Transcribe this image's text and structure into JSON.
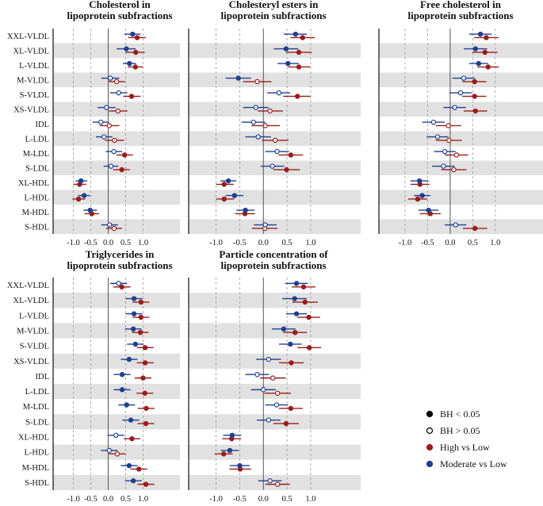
{
  "chart_data": [
    {
      "type": "forest",
      "title": [
        "Cholesterol in",
        "lipoprotein subfractions"
      ],
      "categories": [
        "XXL-VLDL",
        "XL-VLDL",
        "L-VLDL",
        "M-VLDL",
        "S-VLDL",
        "XS-VLDL",
        "IDL",
        "L-LDL",
        "M-LDL",
        "S-LDL",
        "XL-HDL",
        "L-HDL",
        "M-HDL",
        "S-HDL"
      ],
      "xticks": [
        "-1.0",
        "-0.5",
        "0.0",
        "0.5",
        "1.0"
      ],
      "xlim": [
        -1.25,
        1.25
      ],
      "series": [
        {
          "name": "High vs Low",
          "color": "#9b1c1c",
          "values": [
            0.83,
            0.79,
            0.78,
            0.24,
            0.67,
            0.28,
            0.03,
            0.18,
            0.47,
            0.39,
            -0.82,
            -0.85,
            -0.47,
            0.17
          ],
          "ci_low": [
            0.57,
            0.49,
            0.56,
            0.02,
            0.43,
            0.02,
            -0.24,
            -0.09,
            0.24,
            0.14,
            -1.0,
            -1.03,
            -0.68,
            -0.06
          ],
          "ci_high": [
            1.08,
            1.05,
            1.0,
            0.48,
            0.93,
            0.55,
            0.32,
            0.45,
            0.71,
            0.62,
            -0.63,
            -0.66,
            -0.26,
            0.4
          ],
          "significant": [
            true,
            true,
            true,
            false,
            true,
            false,
            false,
            false,
            true,
            true,
            true,
            true,
            true,
            false
          ]
        },
        {
          "name": "Moderate vs Low",
          "color": "#1f3f8f",
          "values": [
            0.7,
            0.52,
            0.61,
            0.06,
            0.3,
            -0.05,
            -0.21,
            -0.12,
            0.16,
            0.08,
            -0.78,
            -0.69,
            -0.52,
            0.04
          ],
          "ci_low": [
            0.46,
            0.24,
            0.42,
            -0.2,
            0.05,
            -0.3,
            -0.45,
            -0.35,
            -0.07,
            -0.13,
            -0.93,
            -0.86,
            -0.71,
            -0.2
          ],
          "ci_high": [
            0.93,
            0.79,
            0.8,
            0.32,
            0.55,
            0.21,
            0.02,
            0.12,
            0.4,
            0.29,
            -0.6,
            -0.52,
            -0.32,
            0.28
          ],
          "significant": [
            true,
            true,
            true,
            false,
            false,
            false,
            false,
            false,
            false,
            false,
            true,
            true,
            true,
            false
          ]
        }
      ]
    },
    {
      "type": "forest",
      "title": [
        "Cholesteryl esters in",
        "lipoprotein subfractions"
      ],
      "categories": [
        "XXL-VLDL",
        "XL-VLDL",
        "L-VLDL",
        "M-VLDL",
        "S-VLDL",
        "XS-VLDL",
        "IDL",
        "L-LDL",
        "M-LDL",
        "S-LDL",
        "XL-HDL",
        "L-HDL",
        "M-HDL",
        "S-HDL"
      ],
      "xticks": [
        "-1.0",
        "-0.5",
        "0.0",
        "0.5",
        "1.0"
      ],
      "xlim": [
        -1.25,
        1.25
      ],
      "series": [
        {
          "name": "High vs Low",
          "color": "#9b1c1c",
          "values": [
            0.83,
            0.75,
            0.75,
            -0.13,
            0.72,
            0.14,
            0.04,
            0.25,
            0.58,
            0.49,
            -0.83,
            -0.83,
            -0.39,
            0.03
          ],
          "ci_low": [
            0.57,
            0.48,
            0.52,
            -0.43,
            0.42,
            -0.12,
            -0.25,
            -0.03,
            0.32,
            0.21,
            -1.0,
            -1.0,
            -0.6,
            -0.24
          ],
          "ci_high": [
            1.09,
            1.02,
            0.99,
            0.17,
            1.0,
            0.41,
            0.35,
            0.53,
            0.84,
            0.77,
            -0.63,
            -0.62,
            -0.18,
            0.3
          ],
          "significant": [
            true,
            true,
            true,
            false,
            true,
            false,
            false,
            false,
            true,
            true,
            true,
            true,
            true,
            false
          ]
        },
        {
          "name": "Moderate vs Low",
          "color": "#1f3f8f",
          "values": [
            0.68,
            0.48,
            0.52,
            -0.53,
            0.33,
            -0.16,
            -0.21,
            -0.11,
            0.29,
            0.19,
            -0.74,
            -0.61,
            -0.38,
            0.04
          ],
          "ci_low": [
            0.43,
            0.22,
            0.3,
            -0.8,
            0.08,
            -0.43,
            -0.46,
            -0.38,
            0.04,
            -0.06,
            -0.91,
            -0.8,
            -0.57,
            -0.2
          ],
          "ci_high": [
            0.92,
            0.74,
            0.75,
            -0.26,
            0.57,
            0.11,
            0.04,
            0.16,
            0.54,
            0.44,
            -0.57,
            -0.42,
            -0.19,
            0.28
          ],
          "significant": [
            true,
            true,
            true,
            true,
            false,
            false,
            false,
            false,
            false,
            false,
            true,
            true,
            true,
            false
          ]
        }
      ]
    },
    {
      "type": "forest",
      "title": [
        "Free cholesterol in",
        "lipoprotein subfractions"
      ],
      "categories": [
        "XXL-VLDL",
        "XL-VLDL",
        "L-VLDL",
        "M-VLDL",
        "S-VLDL",
        "XS-VLDL",
        "IDL",
        "L-LDL",
        "M-LDL",
        "S-LDL",
        "XL-HDL",
        "L-HDL",
        "M-HDL",
        "S-HDL"
      ],
      "xticks": [
        "-1.0",
        "-0.5",
        "0.0",
        "0.5",
        "1.0"
      ],
      "xlim": [
        -1.25,
        1.25
      ],
      "series": [
        {
          "name": "High vs Low",
          "color": "#9b1c1c",
          "values": [
            0.8,
            0.77,
            0.84,
            0.54,
            0.54,
            0.56,
            -0.04,
            -0.03,
            0.14,
            0.08,
            -0.67,
            -0.72,
            -0.44,
            0.55
          ],
          "ci_low": [
            0.53,
            0.49,
            0.6,
            0.27,
            0.27,
            0.3,
            -0.32,
            -0.32,
            -0.12,
            -0.2,
            -0.88,
            -0.93,
            -0.67,
            0.28
          ],
          "ci_high": [
            1.07,
            1.05,
            1.08,
            0.8,
            0.8,
            0.82,
            0.24,
            0.26,
            0.4,
            0.36,
            -0.46,
            -0.51,
            -0.21,
            0.82
          ],
          "significant": [
            true,
            true,
            true,
            true,
            true,
            true,
            false,
            false,
            false,
            false,
            true,
            true,
            true,
            true
          ]
        },
        {
          "name": "Moderate vs Low",
          "color": "#1f3f8f",
          "values": [
            0.67,
            0.56,
            0.63,
            0.3,
            0.23,
            0.1,
            -0.37,
            -0.28,
            -0.12,
            -0.15,
            -0.68,
            -0.62,
            -0.48,
            0.12
          ],
          "ci_low": [
            0.42,
            0.3,
            0.42,
            0.05,
            -0.02,
            -0.15,
            -0.62,
            -0.52,
            -0.36,
            -0.4,
            -0.88,
            -0.8,
            -0.7,
            -0.12
          ],
          "ci_high": [
            0.92,
            0.82,
            0.84,
            0.55,
            0.48,
            0.35,
            -0.12,
            -0.04,
            0.12,
            0.1,
            -0.48,
            -0.44,
            -0.26,
            0.36
          ],
          "significant": [
            true,
            true,
            true,
            false,
            false,
            false,
            false,
            false,
            false,
            false,
            true,
            true,
            true,
            false
          ]
        }
      ]
    },
    {
      "type": "forest",
      "title": [
        "Triglycerides in",
        "lipoprotein subfractions"
      ],
      "categories": [
        "XXL-VLDL",
        "XL-VLDL",
        "L-VLDL",
        "M-VLDL",
        "S-VLDL",
        "XS-VLDL",
        "IDL",
        "L-LDL",
        "M-LDL",
        "S-LDL",
        "XL-HDL",
        "L-HDL",
        "M-HDL",
        "S-HDL"
      ],
      "xticks": [
        "-1.0",
        "-0.5",
        "0.0",
        "0.5",
        "1.0"
      ],
      "xlim": [
        -1.25,
        1.25
      ],
      "series": [
        {
          "name": "High vs Low",
          "color": "#9b1c1c",
          "values": [
            0.39,
            0.94,
            0.94,
            0.92,
            1.06,
            1.06,
            1.0,
            1.05,
            1.09,
            1.08,
            0.68,
            0.26,
            0.88,
            1.08
          ],
          "ci_low": [
            0.14,
            0.7,
            0.7,
            0.68,
            0.82,
            0.82,
            0.76,
            0.81,
            0.85,
            0.84,
            0.44,
            0.02,
            0.64,
            0.84
          ],
          "ci_high": [
            0.64,
            1.18,
            1.18,
            1.16,
            1.3,
            1.3,
            1.24,
            1.29,
            1.33,
            1.32,
            0.92,
            0.5,
            1.12,
            1.32
          ],
          "significant": [
            true,
            true,
            true,
            true,
            true,
            true,
            true,
            true,
            true,
            true,
            true,
            false,
            true,
            true
          ]
        },
        {
          "name": "Moderate vs Low",
          "color": "#1f3f8f",
          "values": [
            0.3,
            0.74,
            0.74,
            0.72,
            0.78,
            0.6,
            0.4,
            0.4,
            0.53,
            0.65,
            0.22,
            0.03,
            0.6,
            0.72
          ],
          "ci_low": [
            0.06,
            0.5,
            0.5,
            0.48,
            0.54,
            0.36,
            0.16,
            0.16,
            0.29,
            0.41,
            -0.02,
            -0.21,
            0.36,
            0.48
          ],
          "ci_high": [
            0.54,
            0.98,
            0.98,
            0.96,
            1.02,
            0.84,
            0.64,
            0.64,
            0.77,
            0.89,
            0.46,
            0.27,
            0.84,
            0.96
          ],
          "significant": [
            false,
            true,
            true,
            true,
            true,
            true,
            true,
            true,
            true,
            true,
            false,
            false,
            true,
            true
          ]
        }
      ]
    },
    {
      "type": "forest",
      "title": [
        "Particle concentration of",
        "lipoprotein subfractions"
      ],
      "categories": [
        "XXL-VLDL",
        "XL-VLDL",
        "L-VLDL",
        "M-VLDL",
        "S-VLDL",
        "XS-VLDL",
        "IDL",
        "L-LDL",
        "M-LDL",
        "S-LDL",
        "XL-HDL",
        "L-HDL",
        "M-HDL",
        "S-HDL"
      ],
      "xticks": [
        "-1.0",
        "-0.5",
        "0.0",
        "0.5",
        "1.0"
      ],
      "xlim": [
        -1.25,
        1.25
      ],
      "series": [
        {
          "name": "High vs Low",
          "color": "#9b1c1c",
          "values": [
            0.85,
            0.88,
            0.96,
            0.67,
            0.97,
            0.59,
            0.2,
            0.3,
            0.58,
            0.48,
            -0.67,
            -0.84,
            -0.49,
            0.3
          ],
          "ci_low": [
            0.6,
            0.61,
            0.72,
            0.42,
            0.72,
            0.33,
            -0.07,
            0.02,
            0.33,
            0.21,
            -0.87,
            -1.03,
            -0.72,
            0.04
          ],
          "ci_high": [
            1.1,
            1.15,
            1.2,
            0.92,
            1.22,
            0.85,
            0.47,
            0.58,
            0.83,
            0.75,
            -0.47,
            -0.65,
            -0.26,
            0.56
          ],
          "significant": [
            true,
            true,
            true,
            true,
            true,
            true,
            false,
            false,
            true,
            true,
            true,
            true,
            true,
            false
          ]
        },
        {
          "name": "Moderate vs Low",
          "color": "#1f3f8f",
          "values": [
            0.7,
            0.66,
            0.7,
            0.43,
            0.57,
            0.11,
            -0.13,
            0.0,
            0.28,
            0.11,
            -0.66,
            -0.71,
            -0.5,
            0.14
          ],
          "ci_low": [
            0.46,
            0.4,
            0.48,
            0.18,
            0.33,
            -0.15,
            -0.38,
            -0.26,
            0.04,
            -0.14,
            -0.85,
            -0.9,
            -0.71,
            -0.11
          ],
          "ci_high": [
            0.94,
            0.92,
            0.92,
            0.68,
            0.81,
            0.37,
            0.12,
            0.26,
            0.52,
            0.36,
            -0.47,
            -0.52,
            -0.29,
            0.39
          ],
          "significant": [
            true,
            true,
            true,
            true,
            true,
            false,
            false,
            false,
            false,
            false,
            true,
            true,
            true,
            false
          ]
        }
      ]
    }
  ],
  "legend": [
    {
      "label": "BH < 0.05",
      "marker": "filled",
      "color": "#000000"
    },
    {
      "label": "BH > 0.05",
      "marker": "open",
      "color": "#000000"
    },
    {
      "label": "High vs Low",
      "marker": "filled",
      "color": "#9b1c1c"
    },
    {
      "label": "Moderate vs Low",
      "marker": "filled",
      "color": "#1f3f8f"
    }
  ]
}
